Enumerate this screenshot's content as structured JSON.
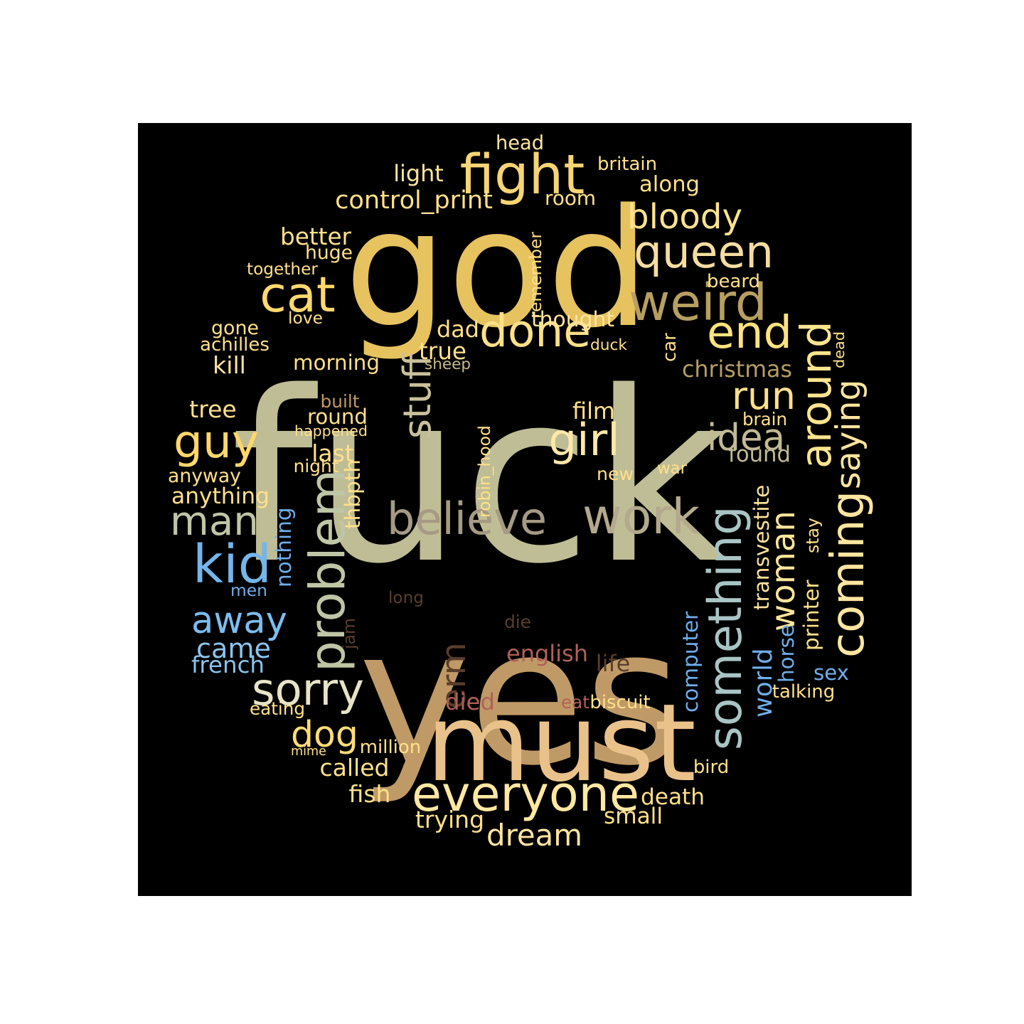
{
  "word_cloud": {
    "background": "#000000",
    "words": [
      {
        "text": "fuck",
        "color": "#BFBD95"
      },
      {
        "text": "god",
        "color": "#E6C35E"
      },
      {
        "text": "yes",
        "color": "#C09A66"
      },
      {
        "text": "must",
        "color": "#E9C18A"
      },
      {
        "text": "fight",
        "color": "#F7D574"
      },
      {
        "text": "queen",
        "color": "#F5DDA1"
      },
      {
        "text": "weird",
        "color": "#B79F62"
      },
      {
        "text": "bloody",
        "color": "#FFE38E"
      },
      {
        "text": "cat",
        "color": "#FFD96F"
      },
      {
        "text": "done",
        "color": "#FFE08A"
      },
      {
        "text": "end",
        "color": "#FFE27F"
      },
      {
        "text": "around",
        "color": "#FFE58F"
      },
      {
        "text": "stuff",
        "color": "#C8C09A"
      },
      {
        "text": "guy",
        "color": "#FFD76B"
      },
      {
        "text": "girl",
        "color": "#FFE8A8"
      },
      {
        "text": "run",
        "color": "#FFE08A"
      },
      {
        "text": "idea",
        "color": "#C2BA95"
      },
      {
        "text": "saying",
        "color": "#FFE69C"
      },
      {
        "text": "man",
        "color": "#C1C5A7"
      },
      {
        "text": "problem",
        "color": "#BFC6A6"
      },
      {
        "text": "believe",
        "color": "#A59A84"
      },
      {
        "text": "work",
        "color": "#B3A98C"
      },
      {
        "text": "something",
        "color": "#A9C4C4"
      },
      {
        "text": "woman",
        "color": "#FFE69A"
      },
      {
        "text": "coming",
        "color": "#FFE5A0"
      },
      {
        "text": "kid",
        "color": "#74B5EA"
      },
      {
        "text": "away",
        "color": "#7CBDF0"
      },
      {
        "text": "came",
        "color": "#8CC4EE"
      },
      {
        "text": "sorry",
        "color": "#E7E3C6"
      },
      {
        "text": "dog",
        "color": "#FFDC78"
      },
      {
        "text": "everyone",
        "color": "#FFE8A2"
      },
      {
        "text": "dream",
        "color": "#FFE4A0"
      },
      {
        "text": "world",
        "color": "#6FAEEA"
      },
      {
        "text": "transvestite",
        "color": "#FFE29A"
      },
      {
        "text": "erm",
        "color": "#5A3D2C"
      },
      {
        "text": "head",
        "color": "#FFE4A0"
      },
      {
        "text": "light",
        "color": "#FFE4A0"
      },
      {
        "text": "britain",
        "color": "#FFE08A"
      },
      {
        "text": "along",
        "color": "#FFE08A"
      },
      {
        "text": "control_print",
        "color": "#FFE08A"
      },
      {
        "text": "room",
        "color": "#FFE08A"
      },
      {
        "text": "better",
        "color": "#FFE08A"
      },
      {
        "text": "huge",
        "color": "#FFE08A"
      },
      {
        "text": "together",
        "color": "#FFE08A"
      },
      {
        "text": "remember",
        "color": "#FFE08A"
      },
      {
        "text": "beard",
        "color": "#FFE08A"
      },
      {
        "text": "thought",
        "color": "#FFE4A0"
      },
      {
        "text": "love",
        "color": "#FFE08A"
      },
      {
        "text": "gone",
        "color": "#FFE08A"
      },
      {
        "text": "dad",
        "color": "#FFE08A"
      },
      {
        "text": "duck",
        "color": "#FFE08A"
      },
      {
        "text": "car",
        "color": "#FFE08A"
      },
      {
        "text": "dead",
        "color": "#FFE08A"
      },
      {
        "text": "achilles",
        "color": "#FFE08A"
      },
      {
        "text": "true",
        "color": "#FFE08A"
      },
      {
        "text": "kill",
        "color": "#FFE4A0"
      },
      {
        "text": "morning",
        "color": "#FFE08A"
      },
      {
        "text": "sheep",
        "color": "#C9B98A"
      },
      {
        "text": "christmas",
        "color": "#B49E63"
      },
      {
        "text": "built",
        "color": "#C09A66"
      },
      {
        "text": "tree",
        "color": "#FFE08A"
      },
      {
        "text": "round",
        "color": "#FFE08A"
      },
      {
        "text": "film",
        "color": "#FFE08A"
      },
      {
        "text": "brain",
        "color": "#FFE08A"
      },
      {
        "text": "happened",
        "color": "#FFE08A"
      },
      {
        "text": "robin_hood",
        "color": "#FFE08A"
      },
      {
        "text": "found",
        "color": "#C2BA95"
      },
      {
        "text": "last",
        "color": "#FFE08A"
      },
      {
        "text": "night",
        "color": "#FFE08A"
      },
      {
        "text": "thbpth",
        "color": "#FFE08A"
      },
      {
        "text": "anyway",
        "color": "#FFE08A"
      },
      {
        "text": "new",
        "color": "#FFE08A"
      },
      {
        "text": "war",
        "color": "#FFE08A"
      },
      {
        "text": "anything",
        "color": "#FFE08A"
      },
      {
        "text": "nothing",
        "color": "#6FAEEA"
      },
      {
        "text": "men",
        "color": "#6FAEEA"
      },
      {
        "text": "stay",
        "color": "#FFE08A"
      },
      {
        "text": "printer",
        "color": "#FFE08A"
      },
      {
        "text": "long",
        "color": "#5A3D2C"
      },
      {
        "text": "die",
        "color": "#5A3D2C"
      },
      {
        "text": "jam",
        "color": "#5A3D2C"
      },
      {
        "text": "english",
        "color": "#B0605A"
      },
      {
        "text": "life",
        "color": "#5A3D2C"
      },
      {
        "text": "computer",
        "color": "#6FAEEA"
      },
      {
        "text": "horse",
        "color": "#6FAEEA"
      },
      {
        "text": "sex",
        "color": "#6FAEEA"
      },
      {
        "text": "french",
        "color": "#8CC4EE"
      },
      {
        "text": "talking",
        "color": "#FFE08A"
      },
      {
        "text": "died",
        "color": "#B0605A"
      },
      {
        "text": "eat",
        "color": "#B0605A"
      },
      {
        "text": "biscuit",
        "color": "#FFE08A"
      },
      {
        "text": "eating",
        "color": "#FFE08A"
      },
      {
        "text": "mime",
        "color": "#FFE08A"
      },
      {
        "text": "million",
        "color": "#FFE08A"
      },
      {
        "text": "called",
        "color": "#FFE08A"
      },
      {
        "text": "bird",
        "color": "#FFE08A"
      },
      {
        "text": "fish",
        "color": "#FFE08A"
      },
      {
        "text": "death",
        "color": "#FFE08A"
      },
      {
        "text": "trying",
        "color": "#FFE08A"
      },
      {
        "text": "small",
        "color": "#FFE08A"
      }
    ]
  }
}
